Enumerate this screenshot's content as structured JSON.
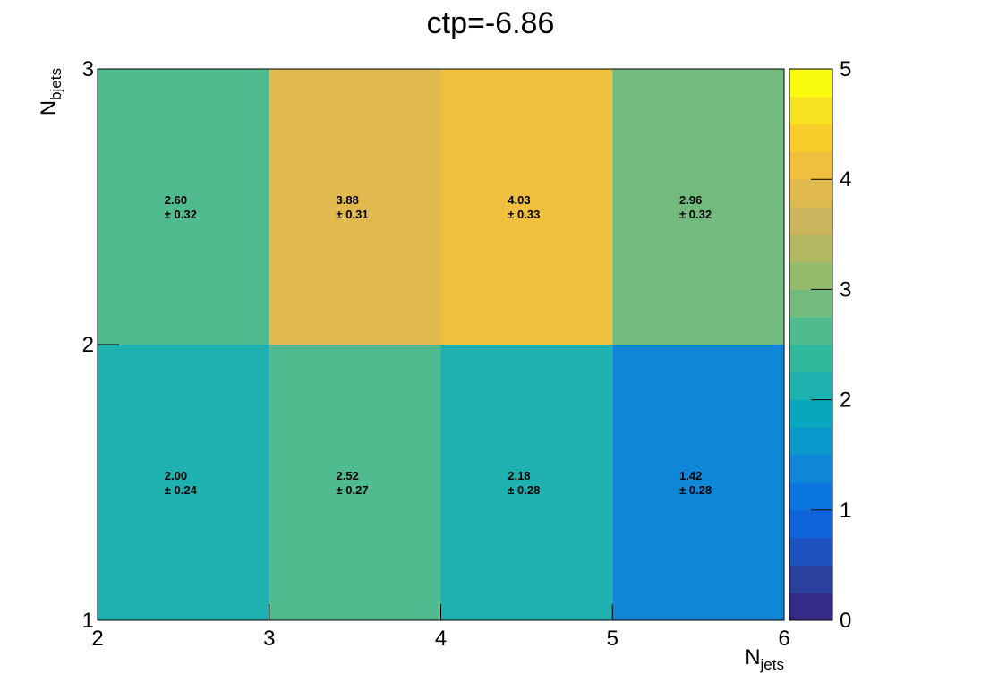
{
  "chart_data": {
    "type": "heatmap",
    "title": "ctp=-6.86",
    "xlabel": {
      "main": "N",
      "sub": "jets"
    },
    "ylabel": {
      "main": "N",
      "sub": "bjets"
    },
    "x_edges": [
      2,
      3,
      4,
      5,
      6
    ],
    "y_edges": [
      1,
      2,
      3
    ],
    "xlim": [
      2,
      6
    ],
    "ylim": [
      1,
      3
    ],
    "x_ticks": [
      "2",
      "3",
      "4",
      "5",
      "6"
    ],
    "y_ticks": [
      "1",
      "2",
      "3"
    ],
    "zlim": [
      0,
      5
    ],
    "z_ticks": [
      "0",
      "1",
      "2",
      "3",
      "4",
      "5"
    ],
    "palette": [
      "#352a87",
      "#2b3f9e",
      "#1d52bf",
      "#1064d9",
      "#0b76e0",
      "#0f86d8",
      "#0a98cb",
      "#07a8be",
      "#1eb1b0",
      "#2fb89c",
      "#51bb90",
      "#73bb7d",
      "#94ba6b",
      "#b1b860",
      "#cbb55c",
      "#e0b94f",
      "#f1bf3e",
      "#f8cd2b",
      "#f8e120",
      "#f9fa0e"
    ],
    "cells": [
      {
        "x": 2.5,
        "y": 1.5,
        "value": 2.0,
        "error": 0.24,
        "value_label": "2.00",
        "error_label": "± 0.24"
      },
      {
        "x": 3.5,
        "y": 1.5,
        "value": 2.52,
        "error": 0.27,
        "value_label": "2.52",
        "error_label": "± 0.27"
      },
      {
        "x": 4.5,
        "y": 1.5,
        "value": 2.18,
        "error": 0.28,
        "value_label": "2.18",
        "error_label": "± 0.28"
      },
      {
        "x": 5.5,
        "y": 1.5,
        "value": 1.42,
        "error": 0.28,
        "value_label": "1.42",
        "error_label": "± 0.28"
      },
      {
        "x": 2.5,
        "y": 2.5,
        "value": 2.6,
        "error": 0.32,
        "value_label": "2.60",
        "error_label": "± 0.32"
      },
      {
        "x": 3.5,
        "y": 2.5,
        "value": 3.88,
        "error": 0.31,
        "value_label": "3.88",
        "error_label": "± 0.31"
      },
      {
        "x": 4.5,
        "y": 2.5,
        "value": 4.03,
        "error": 0.33,
        "value_label": "4.03",
        "error_label": "± 0.33"
      },
      {
        "x": 5.5,
        "y": 2.5,
        "value": 2.96,
        "error": 0.32,
        "value_label": "2.96",
        "error_label": "± 0.32"
      }
    ]
  }
}
